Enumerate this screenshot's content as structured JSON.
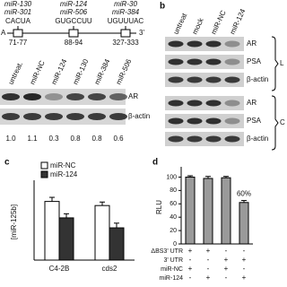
{
  "panel_a": {
    "sites": [
      {
        "mirs": [
          "miR-130",
          "miR-301"
        ],
        "seq": "CACUA",
        "position": "71-77"
      },
      {
        "mirs": [
          "miR-124",
          "miR-506"
        ],
        "seq": "GUGCCUU",
        "position": "88-94"
      },
      {
        "mirs": [
          "miR-30",
          "miR-384"
        ],
        "seq": "UGUUUAC",
        "position": "327-333"
      }
    ],
    "utr_start": "A",
    "utr_end": "3'",
    "lanes": [
      "untreat.",
      "miR-NC",
      "miR-124",
      "miR-130",
      "miR-384",
      "miR-506"
    ],
    "blots": [
      "AR",
      "β-actin"
    ],
    "ratios": [
      "1.0",
      "1.1",
      "0.3",
      "0.8",
      "0.8",
      "0.6"
    ]
  },
  "panel_b": {
    "label": "b",
    "lanes": [
      "untreat",
      "mock",
      "miR-NC",
      "miR-124"
    ],
    "groups": [
      {
        "label": "L",
        "blots": [
          "AR",
          "PSA",
          "β-actin"
        ]
      },
      {
        "label": "C",
        "blots": [
          "AR",
          "PSA",
          "β-actin"
        ]
      }
    ]
  },
  "chart_data": [
    {
      "label": "c",
      "type": "bar",
      "ylabel": "[miR-125b]",
      "categories": [
        "C4-2B",
        "cds2"
      ],
      "series": [
        {
          "name": "miR-NC",
          "color": "#ffffff",
          "values": [
            1.0,
            0.93
          ],
          "errors": [
            0.07,
            0.06
          ]
        },
        {
          "name": "miR-124",
          "color": "#333333",
          "values": [
            0.72,
            0.55
          ],
          "errors": [
            0.07,
            0.08
          ]
        }
      ],
      "ylim": [
        0,
        1.3
      ]
    },
    {
      "label": "d",
      "type": "bar",
      "ylabel": "RLU",
      "values": [
        100,
        98,
        99,
        62
      ],
      "errors": [
        2,
        3,
        2,
        3
      ],
      "color": "#9a9a9a",
      "ylim": [
        0,
        110
      ],
      "yticks": [
        0,
        20,
        40,
        60,
        80,
        100
      ],
      "annotation": "60%",
      "conditions": [
        {
          "label": "ΔBS3' UTR",
          "marks": [
            "+",
            "+",
            "-",
            "-"
          ]
        },
        {
          "label": "3' UTR",
          "marks": [
            "-",
            "-",
            "+",
            "+"
          ]
        },
        {
          "label": "miR-NC",
          "marks": [
            "+",
            "-",
            "+",
            "-"
          ]
        },
        {
          "label": "miR-124",
          "marks": [
            "-",
            "+",
            "-",
            "+"
          ]
        }
      ]
    }
  ]
}
